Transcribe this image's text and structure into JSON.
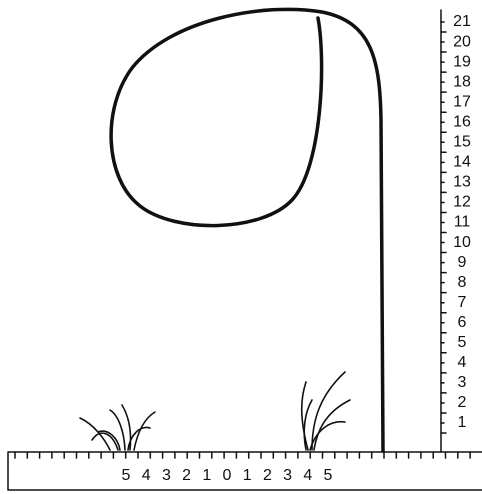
{
  "vertical_ruler": {
    "labels": [
      "1",
      "2",
      "3",
      "4",
      "5",
      "6",
      "7",
      "8",
      "9",
      "10",
      "11",
      "12",
      "13",
      "14",
      "15",
      "16",
      "17",
      "18",
      "19",
      "20",
      "21"
    ]
  },
  "horizontal_ruler": {
    "labels": [
      "5",
      "4",
      "3",
      "2",
      "1",
      "0",
      "1",
      "2",
      "3",
      "4",
      "5"
    ]
  }
}
